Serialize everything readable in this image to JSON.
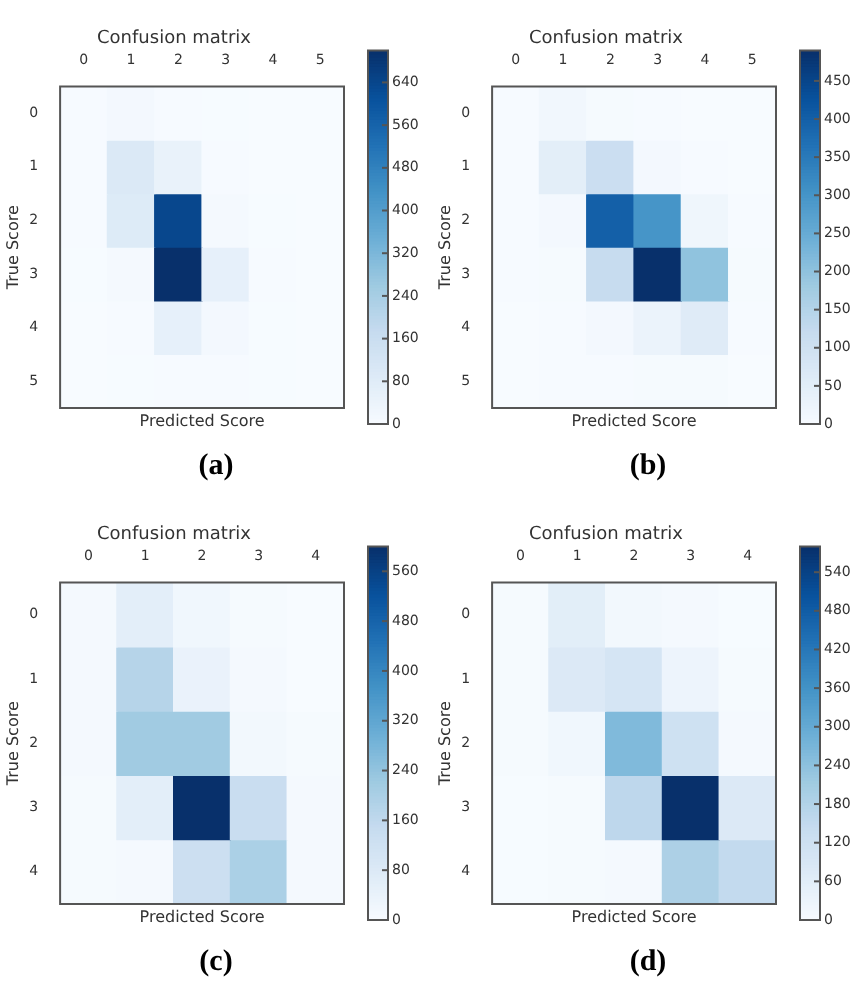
{
  "chart_data": [
    {
      "type": "heatmap",
      "title": "Confusion matrix",
      "xlabel": "Predicted Score",
      "ylabel": "True Score",
      "annotations": [
        "(a)"
      ],
      "categories": [
        "0",
        "1",
        "2",
        "3",
        "4",
        "5"
      ],
      "y_categories": [
        "0",
        "1",
        "2",
        "3",
        "4",
        "5"
      ],
      "cells": [
        [
          5,
          15,
          5,
          2,
          0,
          0
        ],
        [
          5,
          100,
          50,
          5,
          0,
          0
        ],
        [
          5,
          90,
          640,
          10,
          2,
          0
        ],
        [
          2,
          10,
          700,
          60,
          5,
          0
        ],
        [
          0,
          5,
          60,
          15,
          2,
          0
        ],
        [
          0,
          2,
          5,
          5,
          2,
          0
        ]
      ],
      "clim": [
        0,
        700
      ],
      "cticks": [
        0,
        80,
        160,
        240,
        320,
        400,
        480,
        560,
        640
      ]
    },
    {
      "type": "heatmap",
      "title": "Confusion matrix",
      "xlabel": "Predicted Score",
      "ylabel": "True Score",
      "annotations": [
        "(b)"
      ],
      "categories": [
        "0",
        "1",
        "2",
        "3",
        "4",
        "5"
      ],
      "y_categories": [
        "0",
        "1",
        "2",
        "3",
        "4",
        "5"
      ],
      "cells": [
        [
          3,
          15,
          5,
          2,
          0,
          0
        ],
        [
          3,
          50,
          110,
          10,
          2,
          0
        ],
        [
          2,
          10,
          400,
          300,
          20,
          2
        ],
        [
          2,
          5,
          120,
          490,
          200,
          5
        ],
        [
          0,
          2,
          10,
          30,
          60,
          3
        ],
        [
          0,
          2,
          3,
          5,
          5,
          0
        ]
      ],
      "clim": [
        0,
        490
      ],
      "cticks": [
        0,
        50,
        100,
        150,
        200,
        250,
        300,
        350,
        400,
        450
      ]
    },
    {
      "type": "heatmap",
      "title": "Confusion matrix",
      "xlabel": "Predicted Score",
      "ylabel": "True Score",
      "annotations": [
        "(c)"
      ],
      "categories": [
        "0",
        "1",
        "2",
        "3",
        "4"
      ],
      "y_categories": [
        "0",
        "1",
        "2",
        "3",
        "4"
      ],
      "cells": [
        [
          10,
          60,
          20,
          5,
          0
        ],
        [
          10,
          180,
          40,
          10,
          0
        ],
        [
          10,
          220,
          220,
          15,
          5
        ],
        [
          5,
          60,
          600,
          140,
          10
        ],
        [
          5,
          10,
          130,
          200,
          10
        ]
      ],
      "clim": [
        0,
        600
      ],
      "cticks": [
        0,
        80,
        160,
        240,
        320,
        400,
        480,
        560
      ]
    },
    {
      "type": "heatmap",
      "title": "Confusion matrix",
      "xlabel": "Predicted Score",
      "ylabel": "True Score",
      "annotations": [
        "(d)"
      ],
      "categories": [
        "0",
        "1",
        "2",
        "3",
        "4"
      ],
      "y_categories": [
        "0",
        "1",
        "2",
        "3",
        "4"
      ],
      "cells": [
        [
          5,
          60,
          15,
          10,
          2
        ],
        [
          5,
          80,
          100,
          30,
          5
        ],
        [
          5,
          20,
          260,
          120,
          10
        ],
        [
          2,
          5,
          160,
          580,
          80
        ],
        [
          2,
          5,
          10,
          190,
          150
        ]
      ],
      "clim": [
        0,
        580
      ],
      "cticks": [
        0,
        60,
        120,
        180,
        240,
        300,
        360,
        420,
        480,
        540
      ]
    }
  ]
}
